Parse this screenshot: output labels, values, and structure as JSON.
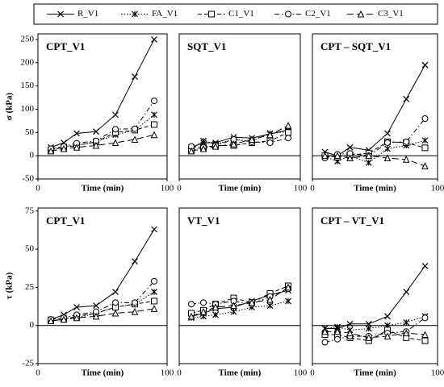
{
  "chart_data": [
    {
      "type": "line",
      "title": "CPT_V1",
      "ylabel": "σ (kPa)",
      "xlabel": "Time (min)",
      "x": [
        10,
        20,
        30,
        45,
        60,
        75,
        90
      ],
      "xlim": [
        0,
        100
      ],
      "xticks": [
        0,
        100
      ],
      "ylim": [
        -50,
        262
      ],
      "yticks": [
        -50,
        0,
        50,
        100,
        150,
        200,
        250
      ],
      "series": [
        {
          "name": "R_V1",
          "color": "#000000",
          "marker": "x",
          "dash": "solid",
          "values": [
            18,
            28,
            48,
            52,
            88,
            170,
            250
          ]
        },
        {
          "name": "FA_V1",
          "color": "#000000",
          "marker": "asterisk",
          "dash": "dotted",
          "values": [
            12,
            20,
            22,
            30,
            45,
            55,
            88
          ]
        },
        {
          "name": "C1_V1",
          "color": "#000000",
          "marker": "square",
          "dash": "dashed",
          "values": [
            12,
            18,
            22,
            30,
            50,
            55,
            67
          ]
        },
        {
          "name": "C2_V1",
          "color": "#000000",
          "marker": "circle",
          "dash": "dashdot",
          "values": [
            15,
            20,
            27,
            32,
            57,
            58,
            118
          ]
        },
        {
          "name": "C3_V1",
          "color": "#000000",
          "marker": "triangle",
          "dash": "longdash",
          "values": [
            10,
            15,
            18,
            22,
            28,
            35,
            45
          ]
        }
      ]
    },
    {
      "type": "line",
      "title": "SQT_V1",
      "xlabel": "Time (min)",
      "x": [
        10,
        20,
        30,
        45,
        60,
        75,
        90
      ],
      "xlim": [
        0,
        100
      ],
      "xticks": [
        0,
        100
      ],
      "ylim": [
        -50,
        262
      ],
      "series": [
        {
          "values": [
            18,
            28,
            28,
            40,
            38,
            47,
            55
          ]
        },
        {
          "values": [
            15,
            32,
            25,
            35,
            32,
            48,
            52
          ]
        },
        {
          "values": [
            12,
            18,
            22,
            22,
            28,
            32,
            50
          ]
        },
        {
          "values": [
            20,
            18,
            22,
            35,
            30,
            28,
            38
          ]
        },
        {
          "values": [
            10,
            15,
            20,
            25,
            35,
            45,
            65
          ]
        }
      ]
    },
    {
      "type": "line",
      "title": "CPT – SQT_V1",
      "xlabel": "Time (min)",
      "x": [
        10,
        20,
        30,
        45,
        60,
        75,
        90
      ],
      "xlim": [
        0,
        100
      ],
      "xticks": [
        0,
        100
      ],
      "ylim": [
        -50,
        262
      ],
      "series": [
        {
          "values": [
            8,
            0,
            18,
            12,
            48,
            122,
            195
          ]
        },
        {
          "values": [
            -2,
            -12,
            0,
            -15,
            15,
            22,
            33
          ]
        },
        {
          "values": [
            0,
            -3,
            2,
            5,
            30,
            28,
            17
          ]
        },
        {
          "values": [
            -5,
            3,
            5,
            0,
            28,
            30,
            80
          ]
        },
        {
          "values": [
            0,
            0,
            -5,
            0,
            -5,
            -8,
            -22
          ]
        }
      ]
    },
    {
      "type": "line",
      "title": "CPT_V1",
      "ylabel": "τ (kPa)",
      "xlabel": "Time (min)",
      "x": [
        10,
        20,
        30,
        45,
        60,
        75,
        90
      ],
      "xlim": [
        0,
        100
      ],
      "xticks": [
        0,
        100
      ],
      "ylim": [
        -25,
        77
      ],
      "yticks": [
        -25,
        0,
        25,
        50,
        75
      ],
      "series": [
        {
          "values": [
            4,
            7,
            12,
            13,
            22,
            42,
            63
          ]
        },
        {
          "values": [
            3,
            5,
            5,
            8,
            12,
            14,
            22
          ]
        },
        {
          "values": [
            3,
            4,
            6,
            8,
            12,
            14,
            16
          ]
        },
        {
          "values": [
            4,
            5,
            7,
            9,
            15,
            15,
            29
          ]
        },
        {
          "values": [
            3,
            4,
            5,
            6,
            8,
            9,
            11
          ]
        }
      ]
    },
    {
      "type": "line",
      "title": "VT_V1",
      "xlabel": "Time (min)",
      "x": [
        10,
        20,
        30,
        45,
        60,
        75,
        90
      ],
      "xlim": [
        0,
        100
      ],
      "xticks": [
        0,
        100
      ],
      "ylim": [
        -25,
        77
      ],
      "series": [
        {
          "values": [
            6,
            8,
            11,
            12,
            16,
            20,
            23
          ]
        },
        {
          "values": [
            5,
            6,
            7,
            9,
            12,
            13,
            16
          ]
        },
        {
          "values": [
            8,
            10,
            14,
            18,
            15,
            21,
            26
          ]
        },
        {
          "values": [
            14,
            15,
            14,
            16,
            14,
            19,
            24
          ]
        },
        {
          "values": [
            6,
            9,
            12,
            13,
            15,
            17,
            25
          ]
        }
      ]
    },
    {
      "type": "line",
      "title": "CPT – VT_V1",
      "xlabel": "Time (min)",
      "x": [
        10,
        20,
        30,
        45,
        60,
        75,
        90
      ],
      "xlim": [
        0,
        100
      ],
      "xticks": [
        0,
        100
      ],
      "ylim": [
        -25,
        77
      ],
      "series": [
        {
          "values": [
            -2,
            -2,
            1,
            1,
            6,
            22,
            39
          ]
        },
        {
          "values": [
            -2,
            -1,
            -3,
            -2,
            0,
            2,
            6
          ]
        },
        {
          "values": [
            -6,
            -6,
            -8,
            -10,
            -3,
            -8,
            -10
          ]
        },
        {
          "values": [
            -11,
            -9,
            -7,
            -7,
            -5,
            -4,
            5
          ]
        },
        {
          "values": [
            -4,
            -4,
            -5,
            -8,
            -7,
            -5,
            -6
          ]
        }
      ]
    }
  ]
}
